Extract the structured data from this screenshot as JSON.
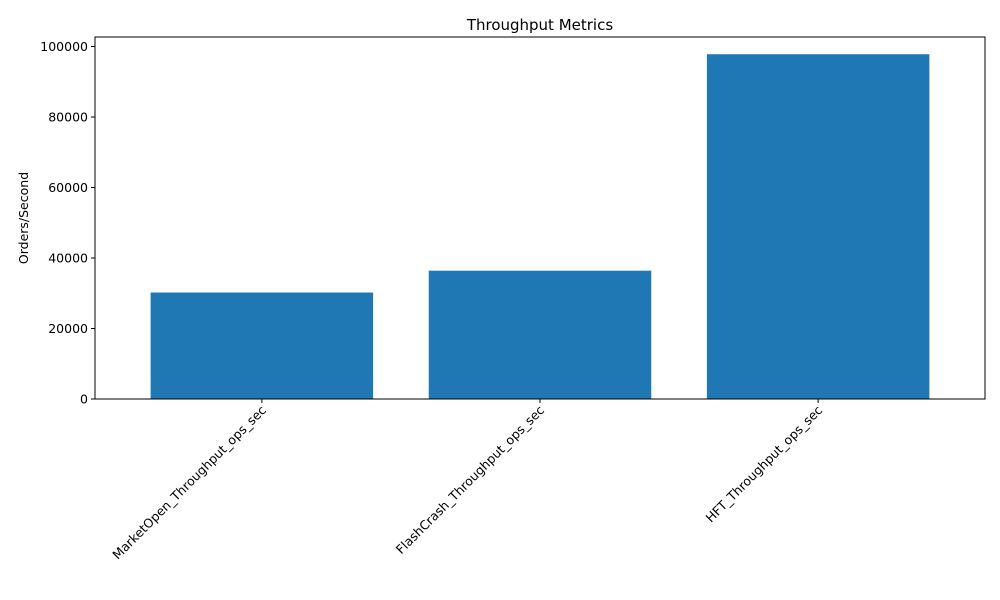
{
  "chart_data": {
    "type": "bar",
    "title": "Throughput Metrics",
    "xlabel": "",
    "ylabel": "Orders/Second",
    "categories": [
      "MarketOpen_Throughput_ops_sec",
      "FlashCrash_Throughput_ops_sec",
      "HFT_Throughput_ops_sec"
    ],
    "values": [
      30200,
      36400,
      97800
    ],
    "ylim": [
      0,
      102690
    ],
    "yticks": [
      0,
      20000,
      40000,
      60000,
      80000,
      100000
    ],
    "bar_color": "#1f77b4",
    "grid": false,
    "legend": "none",
    "xtick_rotation_deg": 45
  }
}
